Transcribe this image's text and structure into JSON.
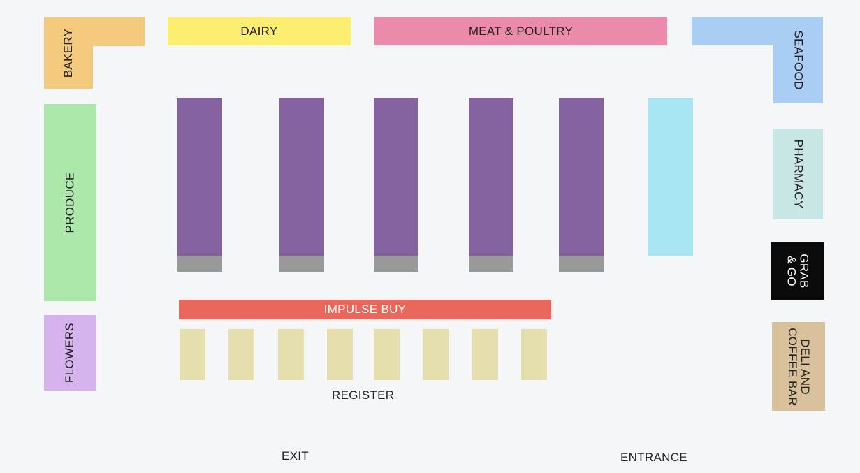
{
  "sections": {
    "bakery": "BAKERY",
    "dairy": "DAIRY",
    "meat_poultry": "MEAT & POULTRY",
    "seafood": "SEAFOOD",
    "produce": "PRODUCE",
    "pharmacy": "PHARMACY",
    "grab_go_line1": "GRAB",
    "grab_go_line2": "& GO",
    "flowers": "FLOWERS",
    "deli_line1": "DELI AND",
    "deli_line2": "COFFEE BAR",
    "impulse_buy": "IMPULSE BUY",
    "register": "REGISTER",
    "exit": "EXIT",
    "entrance": "ENTRANCE"
  },
  "colors": {
    "bakery": "#f3c97d",
    "dairy": "#fbee72",
    "meat_poultry": "#ec8aac",
    "seafood": "#a9cdf3",
    "produce": "#ade8ab",
    "pharmacy": "#c8e6e4",
    "grab_go": "#0a0a0a",
    "flowers": "#d6b3ef",
    "deli": "#d8c09a",
    "aisle": "#8462a0",
    "endcap": "#999999",
    "cold_aisle": "#a9e5f3",
    "impulse_buy": "#e8675a",
    "register": "#e5dead"
  }
}
